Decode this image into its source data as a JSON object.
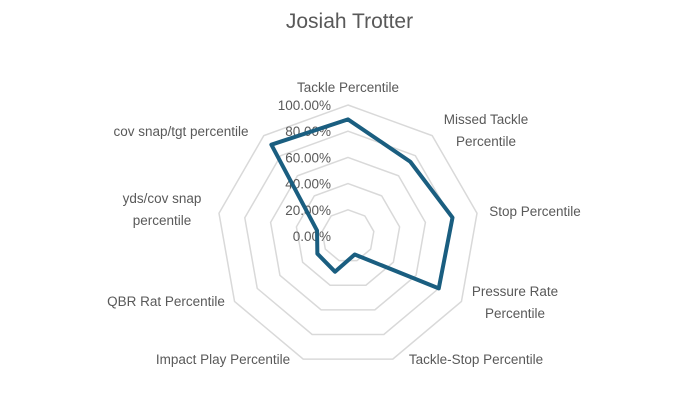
{
  "chart_data": {
    "type": "radar",
    "title": "Josiah Trotter",
    "categories": [
      [
        "Tackle Percentile"
      ],
      [
        "Missed Tackle",
        "Percentile"
      ],
      [
        "Stop Percentile"
      ],
      [
        "Pressure Rate",
        "Percentile"
      ],
      [
        "Tackle-Stop Percentile"
      ],
      [
        "Impact Play Percentile"
      ],
      [
        "QBR Rat Percentile"
      ],
      [
        "yds/cov snap",
        "percentile"
      ],
      [
        "cov snap/tgt percentile"
      ]
    ],
    "values": [
      0.89,
      0.74,
      0.81,
      0.8,
      0.15,
      0.29,
      0.27,
      0.24,
      0.91
    ],
    "rlim": [
      0,
      1
    ],
    "ticks": [
      "0.00%",
      "20.00%",
      "40.00%",
      "60.00%",
      "80.00%",
      "100.00%"
    ],
    "grid": true,
    "legend": "none",
    "colors": {
      "series": "#1a5e80",
      "grid": "#d9d9d9"
    }
  }
}
